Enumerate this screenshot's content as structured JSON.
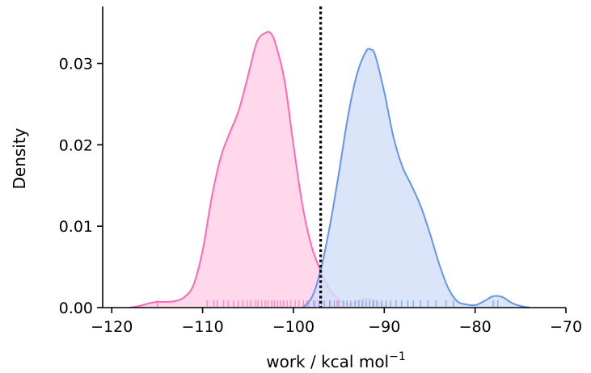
{
  "chart_data": {
    "type": "area",
    "xlabel": "work / kcal mol",
    "xlabel_superscript": "−1",
    "ylabel": "Density",
    "xlim": [
      -121,
      -70
    ],
    "ylim": [
      0,
      0.037
    ],
    "x_ticks": [
      -120,
      -110,
      -100,
      -90,
      -80,
      -70
    ],
    "x_tick_labels": [
      "−120",
      "−110",
      "−100",
      "−90",
      "−80",
      "−70"
    ],
    "y_ticks": [
      0.0,
      0.01,
      0.02,
      0.03
    ],
    "y_tick_labels": [
      "0.00",
      "0.01",
      "0.02",
      "0.03"
    ],
    "grid": false,
    "vline": {
      "x": -97,
      "style": "dotted",
      "color": "#000000"
    },
    "series": [
      {
        "color": "#ff69b4",
        "fill": "#ffd1e8",
        "x": [
          -118,
          -117,
          -116,
          -115,
          -114,
          -113,
          -112,
          -111,
          -110,
          -109,
          -108,
          -107,
          -106,
          -105,
          -104,
          -103,
          -102.5,
          -102,
          -101,
          -100,
          -99,
          -98,
          -97,
          -96,
          -95,
          -94,
          -93,
          -92,
          -91,
          -90,
          -89.5
        ],
        "y": [
          0.0,
          0.0002,
          0.0005,
          0.0007,
          0.0007,
          0.0008,
          0.0013,
          0.0028,
          0.007,
          0.0135,
          0.0185,
          0.0215,
          0.0243,
          0.0285,
          0.0327,
          0.0338,
          0.0337,
          0.0325,
          0.028,
          0.02,
          0.0125,
          0.0075,
          0.0045,
          0.0022,
          0.001,
          0.0004,
          0.0007,
          0.0011,
          0.0008,
          0.0002,
          0.0
        ],
        "rug": [
          -115,
          -109.5,
          -108.8,
          -108.4,
          -107.7,
          -107.2,
          -106.6,
          -106.1,
          -105.6,
          -105.1,
          -104.7,
          -104.2,
          -103.9,
          -103.5,
          -103.1,
          -102.8,
          -102.4,
          -102.1,
          -101.8,
          -101.4,
          -101.1,
          -100.7,
          -100.3,
          -99.8,
          -99.4,
          -98.9,
          -98.3,
          -97.6,
          -96.9,
          -96.0,
          -95.2,
          -91.2
        ]
      },
      {
        "color": "#6495ed",
        "fill": "#d3e1f9",
        "x": [
          -99,
          -98,
          -97,
          -96,
          -95,
          -94,
          -93,
          -92,
          -91.5,
          -91,
          -90,
          -89,
          -88,
          -87,
          -86,
          -85,
          -84,
          -83,
          -82,
          -81,
          -80,
          -79,
          -78,
          -77,
          -76,
          -75,
          -74
        ],
        "y": [
          0.0,
          0.0012,
          0.0046,
          0.01,
          0.0165,
          0.0235,
          0.0287,
          0.0315,
          0.0317,
          0.031,
          0.0265,
          0.021,
          0.0173,
          0.015,
          0.0125,
          0.0092,
          0.0055,
          0.0025,
          0.0008,
          0.0004,
          0.0003,
          0.0008,
          0.0014,
          0.0013,
          0.0006,
          0.0002,
          0.0
        ],
        "rug": [
          -98.5,
          -97.8,
          -97.2,
          -96.6,
          -96.0,
          -95.5,
          -95.0,
          -94.5,
          -94.1,
          -93.7,
          -93.2,
          -92.8,
          -92.4,
          -92.0,
          -91.6,
          -91.2,
          -90.8,
          -90.3,
          -89.8,
          -89.3,
          -88.7,
          -88.1,
          -87.4,
          -86.8,
          -86.0,
          -85.2,
          -84.3,
          -83.2,
          -82.4,
          -78.0,
          -77.5
        ]
      }
    ]
  }
}
